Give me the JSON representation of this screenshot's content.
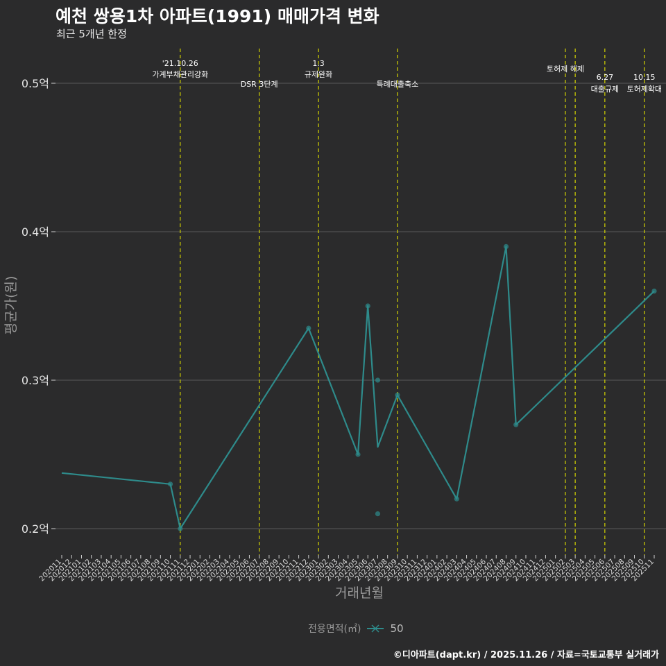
{
  "title": "예천 쌍용1차 아파트(1991) 매매가격 변화",
  "subtitle": "최근 5개년 한정",
  "caption": "©디아파트(dapt.kr) / 2025.11.26 / 자료=국토교통부 실거래가",
  "colors": {
    "background": "#2b2b2c",
    "line": "#2e8b8b",
    "grid": "#5a5a5a",
    "event_line": "#d4d400",
    "text": "#ffffff"
  },
  "chart_data": {
    "type": "line",
    "title": "예천 쌍용1차 아파트(1991) 매매가격 변화",
    "xlabel": "거래년월",
    "ylabel": "평균가(원)",
    "ylim": [
      0.19,
      0.52
    ],
    "yticks": [
      0.2,
      0.3,
      0.4,
      0.5
    ],
    "ytick_labels": [
      "0.2억",
      "0.3억",
      "0.4억",
      "0.5억"
    ],
    "categories": [
      "202011",
      "202012",
      "202101",
      "202102",
      "202103",
      "202104",
      "202105",
      "202106",
      "202107",
      "202108",
      "202109",
      "202110",
      "202111",
      "202112",
      "202201",
      "202202",
      "202203",
      "202204",
      "202205",
      "202206",
      "202207",
      "202208",
      "202209",
      "202210",
      "202211",
      "202212",
      "202301",
      "202302",
      "202303",
      "202304",
      "202305",
      "202306",
      "202307",
      "202308",
      "202309",
      "202310",
      "202311",
      "202312",
      "202401",
      "202402",
      "202403",
      "202404",
      "202405",
      "202406",
      "202407",
      "202408",
      "202409",
      "202410",
      "202411",
      "202412",
      "202501",
      "202502",
      "202503",
      "202504",
      "202505",
      "202506",
      "202507",
      "202508",
      "202509",
      "202510",
      "202511"
    ],
    "legend_title": "전용면적(㎡)",
    "series": [
      {
        "name": "50",
        "line": [
          {
            "x": "202011",
            "y": 0.2375
          },
          {
            "x": "202110",
            "y": 0.23
          },
          {
            "x": "202111",
            "y": 0.2
          },
          {
            "x": "202212",
            "y": 0.335
          },
          {
            "x": "202305",
            "y": 0.25
          },
          {
            "x": "202306",
            "y": 0.35
          },
          {
            "x": "202307",
            "y": 0.255
          },
          {
            "x": "202309",
            "y": 0.29
          },
          {
            "x": "202403",
            "y": 0.22
          },
          {
            "x": "202408",
            "y": 0.39
          },
          {
            "x": "202409",
            "y": 0.27
          },
          {
            "x": "202511",
            "y": 0.36
          }
        ],
        "points": [
          {
            "x": "202110",
            "y": 0.23
          },
          {
            "x": "202111",
            "y": 0.2
          },
          {
            "x": "202212",
            "y": 0.335
          },
          {
            "x": "202305",
            "y": 0.25
          },
          {
            "x": "202306",
            "y": 0.35
          },
          {
            "x": "202307",
            "y": 0.3
          },
          {
            "x": "202307",
            "y": 0.21
          },
          {
            "x": "202309",
            "y": 0.29
          },
          {
            "x": "202403",
            "y": 0.22
          },
          {
            "x": "202408",
            "y": 0.39
          },
          {
            "x": "202409",
            "y": 0.27
          },
          {
            "x": "202511",
            "y": 0.36
          }
        ]
      }
    ],
    "events": [
      {
        "x": "202111",
        "date": "'21.10.26",
        "label": "가계부채관리강화"
      },
      {
        "x": "202207",
        "date": "",
        "label": "DSR 3단계"
      },
      {
        "x": "202301",
        "date": "1.3",
        "label": "규제완화"
      },
      {
        "x": "202309",
        "date": "",
        "label": "특례대출축소"
      },
      {
        "x": "202502",
        "date": "",
        "label": "토허제 해제"
      },
      {
        "x": "202503",
        "date": "",
        "label": ""
      },
      {
        "x": "202506",
        "date": "6.27",
        "label": "대출규제"
      },
      {
        "x": "202510",
        "date": "10.15",
        "label": "토허제확대"
      }
    ]
  }
}
